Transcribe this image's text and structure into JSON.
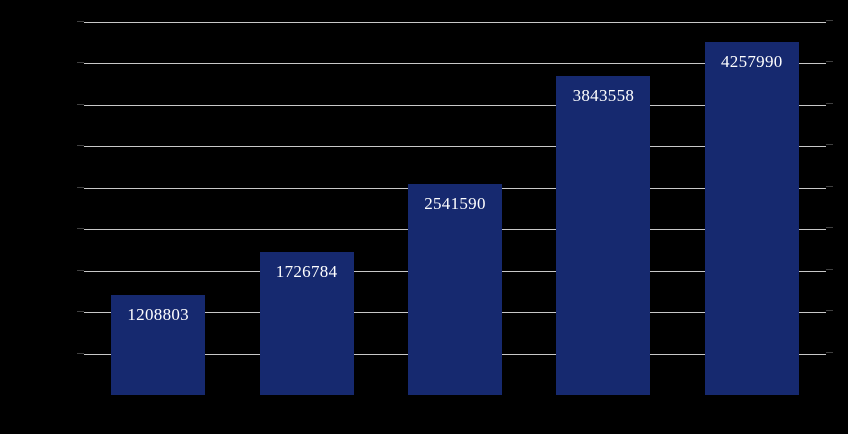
{
  "chart_data": {
    "type": "bar",
    "values": [
      1208803,
      1726784,
      2541590,
      3843558,
      4257990
    ],
    "data_labels": [
      "1208803",
      "1726784",
      "2541590",
      "3843558",
      "4257990"
    ],
    "ylim": [
      0,
      4500000
    ],
    "gridline_interval": 500000,
    "grid": true,
    "legend": false,
    "title_visible": false,
    "axis_tick_labels_visible": false,
    "category_labels_visible": false,
    "colors": {
      "background": "#000000",
      "bar_fill": "#16296f",
      "gridline": "#c8c8c8",
      "axis_tick": "#8f8f8f",
      "data_label": "#ffffff"
    }
  }
}
